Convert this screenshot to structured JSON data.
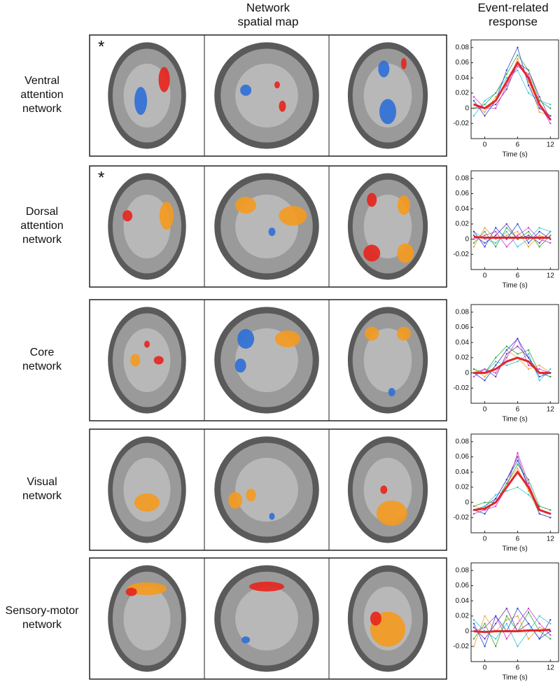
{
  "figure": {
    "column_headers": [
      [
        "Network",
        "spatial map"
      ],
      [
        "Event-related",
        "response"
      ]
    ],
    "rows": [
      {
        "label": [
          "Ventral",
          "attention",
          "network"
        ],
        "marker": "*"
      },
      {
        "label": [
          "Dorsal",
          "attention",
          "network"
        ],
        "marker": "*"
      },
      {
        "label": [
          "Core",
          "network"
        ]
      },
      {
        "label": [
          "Visual",
          "network"
        ]
      },
      {
        "label": [
          "Sensory-motor",
          "network"
        ]
      }
    ]
  },
  "chart_data": [
    {
      "type": "line",
      "xlabel": "Time (s)",
      "x": [
        -2,
        0,
        2,
        4,
        6,
        8,
        10,
        12
      ],
      "xlim": [
        -2.5,
        13.5
      ],
      "xticks": [
        0,
        6,
        12
      ],
      "ylim": [
        -0.04,
        0.09
      ],
      "yticks": [
        -0.02,
        0,
        0.02,
        0.04,
        0.06,
        0.08
      ],
      "series": [
        {
          "color": "#e3262b",
          "values": [
            0.005,
            0.0,
            0.01,
            0.035,
            0.06,
            0.04,
            0.005,
            -0.015
          ]
        },
        {
          "color": "#2b4bd6",
          "values": [
            0.01,
            -0.01,
            0.01,
            0.05,
            0.08,
            0.03,
            0.0,
            -0.01
          ]
        },
        {
          "color": "#3aa845",
          "values": [
            0.0,
            0.005,
            0.02,
            0.045,
            0.07,
            0.05,
            0.01,
            0.0
          ]
        },
        {
          "color": "#d23ad0",
          "values": [
            0.015,
            0.0,
            0.0,
            0.03,
            0.055,
            0.045,
            0.005,
            -0.02
          ]
        },
        {
          "color": "#36c6d6",
          "values": [
            -0.01,
            0.01,
            0.02,
            0.04,
            0.05,
            0.02,
            0.01,
            0.005
          ]
        },
        {
          "color": "#f0a030",
          "values": [
            0.005,
            -0.005,
            0.015,
            0.03,
            0.065,
            0.035,
            -0.005,
            -0.01
          ]
        },
        {
          "color": "#6a3aa8",
          "values": [
            0.0,
            0.0,
            0.005,
            0.025,
            0.06,
            0.05,
            0.015,
            -0.015
          ]
        }
      ]
    },
    {
      "type": "line",
      "xlabel": "Time (s)",
      "x": [
        -2,
        0,
        2,
        4,
        6,
        8,
        10,
        12
      ],
      "xlim": [
        -2.5,
        13.5
      ],
      "xticks": [
        0,
        6,
        12
      ],
      "ylim": [
        -0.04,
        0.09
      ],
      "yticks": [
        -0.02,
        0,
        0.02,
        0.04,
        0.06,
        0.08
      ],
      "series": [
        {
          "color": "#e3262b",
          "values": [
            0.003,
            0.002,
            0.002,
            0.002,
            0.002,
            0.002,
            0.002,
            0.002
          ]
        },
        {
          "color": "#2b4bd6",
          "values": [
            0.01,
            -0.01,
            0.015,
            0.0,
            0.02,
            -0.005,
            0.01,
            0.0
          ]
        },
        {
          "color": "#3aa845",
          "values": [
            -0.005,
            0.01,
            -0.01,
            0.015,
            0.0,
            0.01,
            -0.01,
            0.005
          ]
        },
        {
          "color": "#d23ad0",
          "values": [
            0.0,
            0.005,
            0.01,
            -0.01,
            0.005,
            0.015,
            0.0,
            -0.005
          ]
        },
        {
          "color": "#36c6d6",
          "values": [
            0.01,
            0.0,
            -0.005,
            0.01,
            -0.01,
            0.0,
            0.015,
            0.01
          ]
        },
        {
          "color": "#f0a030",
          "values": [
            -0.01,
            0.015,
            0.0,
            0.005,
            0.01,
            -0.01,
            0.005,
            0.0
          ]
        },
        {
          "color": "#6a3aa8",
          "values": [
            0.005,
            -0.005,
            0.005,
            0.02,
            0.0,
            0.005,
            -0.005,
            0.01
          ]
        }
      ]
    },
    {
      "type": "line",
      "xlabel": "Time (s)",
      "x": [
        -2,
        0,
        2,
        4,
        6,
        8,
        10,
        12
      ],
      "xlim": [
        -2.5,
        13.5
      ],
      "xticks": [
        0,
        6,
        12
      ],
      "ylim": [
        -0.04,
        0.09
      ],
      "yticks": [
        -0.02,
        0,
        0.02,
        0.04,
        0.06,
        0.08
      ],
      "series": [
        {
          "color": "#e3262b",
          "values": [
            0.0,
            0.0,
            0.005,
            0.015,
            0.02,
            0.015,
            0.0,
            0.0
          ]
        },
        {
          "color": "#2b4bd6",
          "values": [
            0.0,
            -0.01,
            0.01,
            0.03,
            0.045,
            0.02,
            -0.005,
            0.0
          ]
        },
        {
          "color": "#3aa845",
          "values": [
            0.005,
            0.0,
            0.02,
            0.035,
            0.025,
            0.03,
            0.0,
            -0.005
          ]
        },
        {
          "color": "#d23ad0",
          "values": [
            -0.005,
            0.005,
            0.0,
            0.02,
            0.045,
            0.01,
            0.005,
            0.0
          ]
        },
        {
          "color": "#36c6d6",
          "values": [
            0.0,
            0.0,
            0.015,
            0.01,
            0.015,
            0.025,
            -0.01,
            0.005
          ]
        },
        {
          "color": "#f0a030",
          "values": [
            0.005,
            -0.005,
            0.01,
            0.03,
            0.02,
            0.005,
            0.01,
            0.0
          ]
        },
        {
          "color": "#6a3aa8",
          "values": [
            0.0,
            0.005,
            -0.005,
            0.025,
            0.035,
            0.02,
            0.0,
            -0.005
          ]
        }
      ]
    },
    {
      "type": "line",
      "xlabel": "Time (s)",
      "x": [
        -2,
        0,
        2,
        4,
        6,
        8,
        10,
        12
      ],
      "xlim": [
        -2.5,
        13.5
      ],
      "xticks": [
        0,
        6,
        12
      ],
      "ylim": [
        -0.04,
        0.09
      ],
      "yticks": [
        -0.02,
        0,
        0.02,
        0.04,
        0.06,
        0.08
      ],
      "series": [
        {
          "color": "#e3262b",
          "values": [
            -0.01,
            -0.008,
            0.0,
            0.02,
            0.04,
            0.02,
            -0.01,
            -0.015
          ]
        },
        {
          "color": "#2b4bd6",
          "values": [
            -0.01,
            -0.015,
            0.005,
            0.03,
            0.055,
            0.02,
            -0.015,
            -0.02
          ]
        },
        {
          "color": "#3aa845",
          "values": [
            -0.005,
            0.0,
            0.0,
            0.025,
            0.05,
            0.03,
            -0.005,
            -0.01
          ]
        },
        {
          "color": "#d23ad0",
          "values": [
            -0.015,
            -0.01,
            -0.005,
            0.02,
            0.065,
            0.025,
            -0.01,
            -0.015
          ]
        },
        {
          "color": "#36c6d6",
          "values": [
            -0.01,
            -0.005,
            0.01,
            0.015,
            0.02,
            0.01,
            -0.005,
            -0.01
          ]
        },
        {
          "color": "#f0a030",
          "values": [
            -0.005,
            -0.01,
            0.0,
            0.025,
            0.045,
            0.015,
            -0.015,
            -0.02
          ]
        },
        {
          "color": "#6a3aa8",
          "values": [
            -0.01,
            -0.005,
            0.005,
            0.03,
            0.06,
            0.02,
            -0.01,
            -0.015
          ]
        }
      ]
    },
    {
      "type": "line",
      "xlabel": "Time (s)",
      "x": [
        -2,
        0,
        2,
        4,
        6,
        8,
        10,
        12
      ],
      "xlim": [
        -2.5,
        13.5
      ],
      "xticks": [
        0,
        6,
        12
      ],
      "ylim": [
        -0.04,
        0.09
      ],
      "yticks": [
        -0.02,
        0,
        0.02,
        0.04,
        0.06,
        0.08
      ],
      "series": [
        {
          "color": "#e3262b",
          "values": [
            0.0,
            -0.001,
            0.0,
            0.0,
            0.0,
            0.001,
            0.001,
            0.002
          ]
        },
        {
          "color": "#2b4bd6",
          "values": [
            0.01,
            -0.02,
            0.02,
            0.0,
            0.03,
            0.01,
            -0.01,
            0.0
          ]
        },
        {
          "color": "#3aa845",
          "values": [
            -0.01,
            0.01,
            -0.02,
            0.02,
            0.0,
            0.025,
            0.0,
            -0.01
          ]
        },
        {
          "color": "#d23ad0",
          "values": [
            0.0,
            0.005,
            0.02,
            -0.01,
            0.01,
            0.03,
            0.01,
            -0.005
          ]
        },
        {
          "color": "#36c6d6",
          "values": [
            0.015,
            0.0,
            -0.01,
            0.01,
            -0.02,
            0.0,
            0.02,
            0.01
          ]
        },
        {
          "color": "#f0a030",
          "values": [
            -0.02,
            0.02,
            0.0,
            0.015,
            0.02,
            -0.01,
            0.005,
            0.0
          ]
        },
        {
          "color": "#6a3aa8",
          "values": [
            0.005,
            -0.01,
            0.01,
            0.03,
            0.0,
            0.01,
            -0.01,
            0.015
          ]
        }
      ]
    }
  ]
}
